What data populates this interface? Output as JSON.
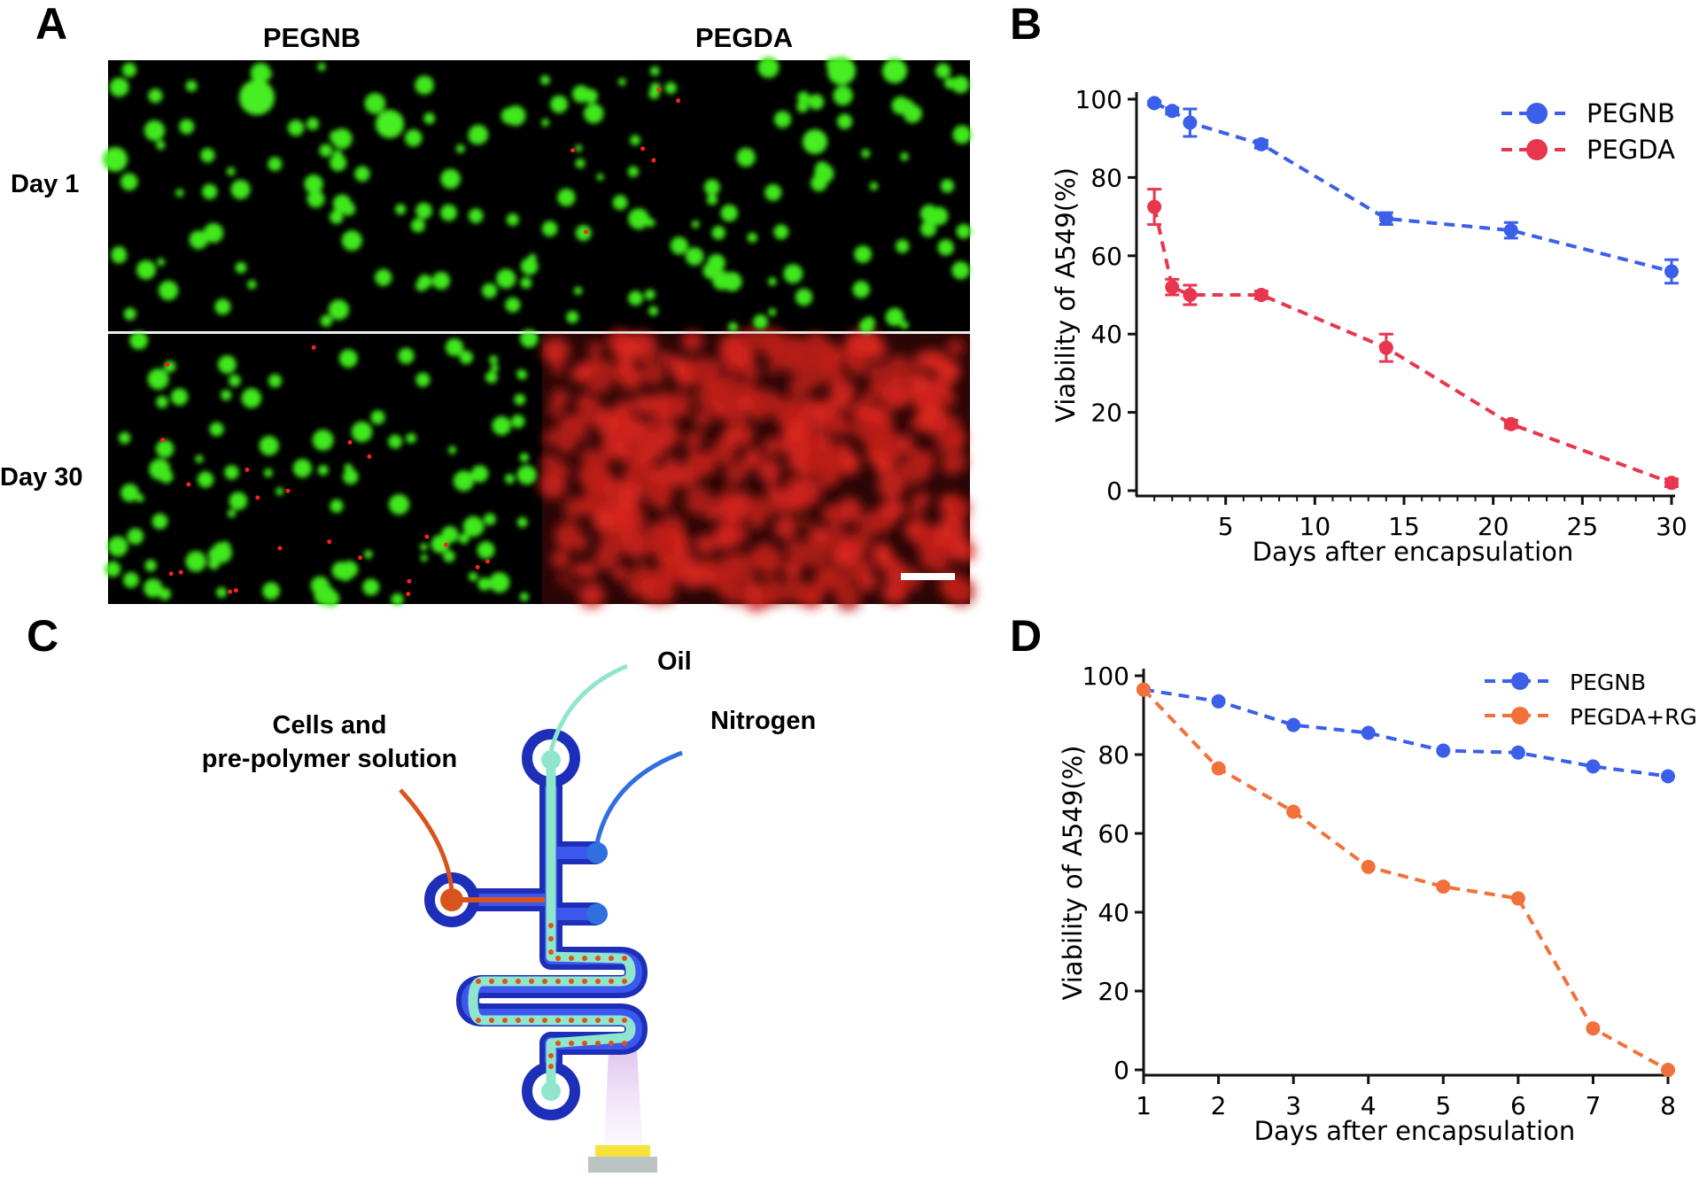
{
  "panels": {
    "a": {
      "letter": "A",
      "columns": [
        "PEGNB",
        "PEGDA"
      ],
      "rows": [
        "Day 1",
        "Day 30"
      ]
    },
    "b": {
      "letter": "B"
    },
    "c": {
      "letter": "C",
      "labels": {
        "oil": "Oil",
        "nitrogen": "Nitrogen",
        "cells_line1": "Cells and",
        "cells_line2": "pre-polymer solution"
      },
      "colors": {
        "channel": "#2b3fd0",
        "oil": "#8fe6cc",
        "cells": "#d9541c",
        "nitrogen": "#2f6fe0",
        "light": "#f7e13a"
      }
    },
    "d": {
      "letter": "D"
    }
  },
  "chart_data": [
    {
      "panel": "B",
      "type": "line",
      "xlabel": "Days after encapsulation",
      "ylabel": "Viability of A549(%)",
      "xlim": [
        0,
        30
      ],
      "ylim": [
        0,
        100
      ],
      "xticks": [
        5,
        10,
        15,
        20,
        25,
        30
      ],
      "yticks": [
        0,
        20,
        40,
        60,
        80,
        100
      ],
      "legend": "top-right",
      "series": [
        {
          "name": "PEGNB",
          "color": "#3b5fe8",
          "x": [
            1,
            2,
            3,
            7,
            14,
            21,
            30
          ],
          "y": [
            99,
            97,
            94,
            88.5,
            69.5,
            66.5,
            56
          ],
          "err": [
            0.5,
            0.8,
            3.5,
            1,
            1.5,
            2,
            3
          ]
        },
        {
          "name": "PEGDA",
          "color": "#e8364f",
          "x": [
            1,
            2,
            3,
            7,
            14,
            21,
            30
          ],
          "y": [
            72.5,
            52,
            50,
            50,
            36.5,
            17,
            2
          ],
          "err": [
            4.5,
            2,
            2.5,
            1,
            3.5,
            1,
            1
          ]
        }
      ]
    },
    {
      "panel": "D",
      "type": "line",
      "xlabel": "Days after encapsulation",
      "ylabel": "Viability of A549(%)",
      "xlim": [
        1,
        8
      ],
      "ylim": [
        0,
        100
      ],
      "xticks": [
        1,
        2,
        3,
        4,
        5,
        6,
        7,
        8
      ],
      "yticks": [
        0,
        20,
        40,
        60,
        80,
        100
      ],
      "legend": "top-right",
      "series": [
        {
          "name": "PEGNB",
          "color": "#3b5fe8",
          "x": [
            1,
            2,
            3,
            4,
            5,
            6,
            7,
            8
          ],
          "y": [
            96.5,
            93.5,
            87.5,
            85.5,
            81,
            80.5,
            77,
            74.5
          ]
        },
        {
          "name": "PEGDA+RGDS",
          "color": "#f2703a",
          "x": [
            1,
            2,
            3,
            4,
            5,
            6,
            7,
            8
          ],
          "y": [
            96.5,
            76.5,
            65.5,
            51.5,
            46.5,
            43.5,
            10.5,
            0
          ]
        }
      ]
    }
  ]
}
